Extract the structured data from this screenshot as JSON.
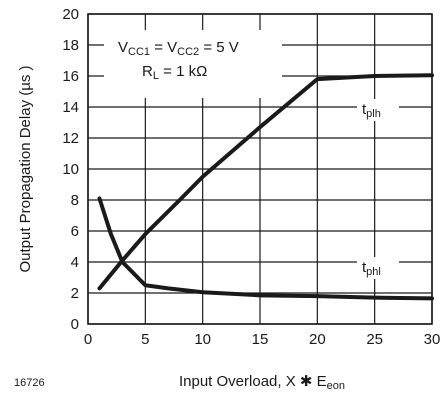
{
  "figure_id": "16726",
  "colors": {
    "ink": "#1a1a1a",
    "grid": "#1a1a1a",
    "background": "#ffffff"
  },
  "chart_data": {
    "type": "line",
    "xlabel": {
      "main": "Input Overload, X",
      "symbol": "✱",
      "var": "E",
      "sub": "eon"
    },
    "ylabel": "Output Propagation Delay  (µs )",
    "xlim": [
      0,
      30
    ],
    "ylim": [
      0,
      20
    ],
    "xticks": [
      "0",
      "5",
      "10",
      "15",
      "20",
      "25",
      "30"
    ],
    "yticks": [
      "0",
      "2",
      "4",
      "6",
      "8",
      "10",
      "12",
      "14",
      "16",
      "18",
      "20"
    ],
    "grid": true,
    "conditions": [
      {
        "parts": [
          [
            "V",
            ""
          ],
          [
            "CC1",
            "sub"
          ],
          [
            " = V",
            ""
          ],
          [
            "CC2",
            "sub"
          ],
          [
            " = 5 V",
            ""
          ]
        ]
      },
      {
        "parts": [
          [
            "R",
            ""
          ],
          [
            "L",
            "sub"
          ],
          [
            " = 1 kΩ",
            ""
          ]
        ]
      }
    ],
    "series": [
      {
        "name_base": "t",
        "name_sub": "plh",
        "x": [
          1,
          3,
          5,
          8,
          10,
          15,
          20,
          25,
          30
        ],
        "y": [
          2.3,
          4.1,
          5.8,
          8.0,
          9.5,
          12.7,
          15.8,
          16.0,
          16.05
        ]
      },
      {
        "name_base": "t",
        "name_sub": "phl",
        "x": [
          1,
          2,
          3,
          5,
          7,
          10,
          15,
          20,
          25,
          30
        ],
        "y": [
          8.1,
          5.8,
          4.0,
          2.5,
          2.3,
          2.05,
          1.85,
          1.8,
          1.7,
          1.65
        ]
      }
    ]
  }
}
